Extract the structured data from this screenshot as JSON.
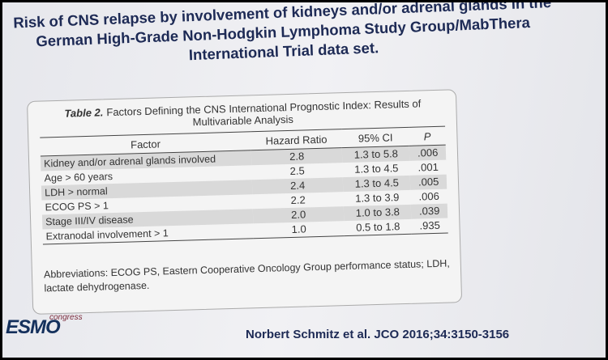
{
  "slide": {
    "title_lines": [
      "Risk of CNS relapse by involvement of kidneys and/or adrenal glands in the",
      "German High-Grade Non-Hodgkin Lymphoma Study Group/MabThera",
      "International Trial data set."
    ],
    "table": {
      "label": "Table 2.",
      "caption": "Factors Defining the CNS International Prognostic Index: Results of Multivariable Analysis",
      "header": [
        "Factor",
        "Hazard Ratio",
        "95% CI",
        "P"
      ],
      "rows": [
        [
          "Kidney and/or adrenal glands involved",
          "2.8",
          "1.3 to 5.8",
          ".006"
        ],
        [
          "Age > 60 years",
          "2.5",
          "1.3 to 4.5",
          ".001"
        ],
        [
          "LDH > normal",
          "2.4",
          "1.3 to 4.5",
          ".005"
        ],
        [
          "ECOG PS > 1",
          "2.2",
          "1.3 to 3.9",
          ".006"
        ],
        [
          "Stage III/IV disease",
          "2.0",
          "1.0 to 3.8",
          ".039"
        ],
        [
          "Extranodal involvement > 1",
          "1.0",
          "0.5 to 1.8",
          ".935"
        ]
      ],
      "footnote": "Abbreviations: ECOG PS, Eastern Cooperative Oncology Group performance status; LDH, lactate dehydrogenase."
    },
    "logo": {
      "main": "ESMO",
      "sub": "congress"
    },
    "citation": "Norbert Schmitz et al. JCO 2016;34:3150-3156"
  }
}
